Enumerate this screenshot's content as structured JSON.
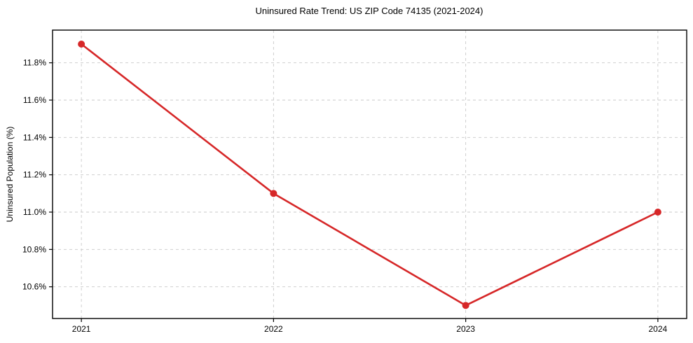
{
  "title": "Uninsured Rate Trend: US ZIP Code 74135 (2021-2024)",
  "chart_data": {
    "type": "line",
    "title": "Uninsured Rate Trend: US ZIP Code 74135 (2021-2024)",
    "xlabel": "",
    "ylabel": "Uninsured Population (%)",
    "x": [
      2021,
      2022,
      2023,
      2024
    ],
    "x_labels": [
      "2021",
      "2022",
      "2023",
      "2024"
    ],
    "series": [
      {
        "name": "Uninsured Rate",
        "values": [
          11.9,
          11.1,
          10.5,
          11.0
        ]
      }
    ],
    "yticks": [
      10.6,
      10.8,
      11.0,
      11.2,
      11.4,
      11.6,
      11.8
    ],
    "ytick_labels": [
      "10.6%",
      "10.8%",
      "11.0%",
      "11.2%",
      "11.4%",
      "11.6%",
      "11.8%"
    ],
    "ylim": [
      10.43,
      11.975
    ],
    "xlim": [
      2020.85,
      2024.15
    ],
    "grid": true,
    "grid_style": "dashed",
    "legend_position": "none",
    "colors": {
      "line": "#d62728",
      "marker": "#d62728",
      "grid": "#c9c9c9",
      "axis": "#000000",
      "text": "#000000",
      "background": "#ffffff"
    }
  }
}
